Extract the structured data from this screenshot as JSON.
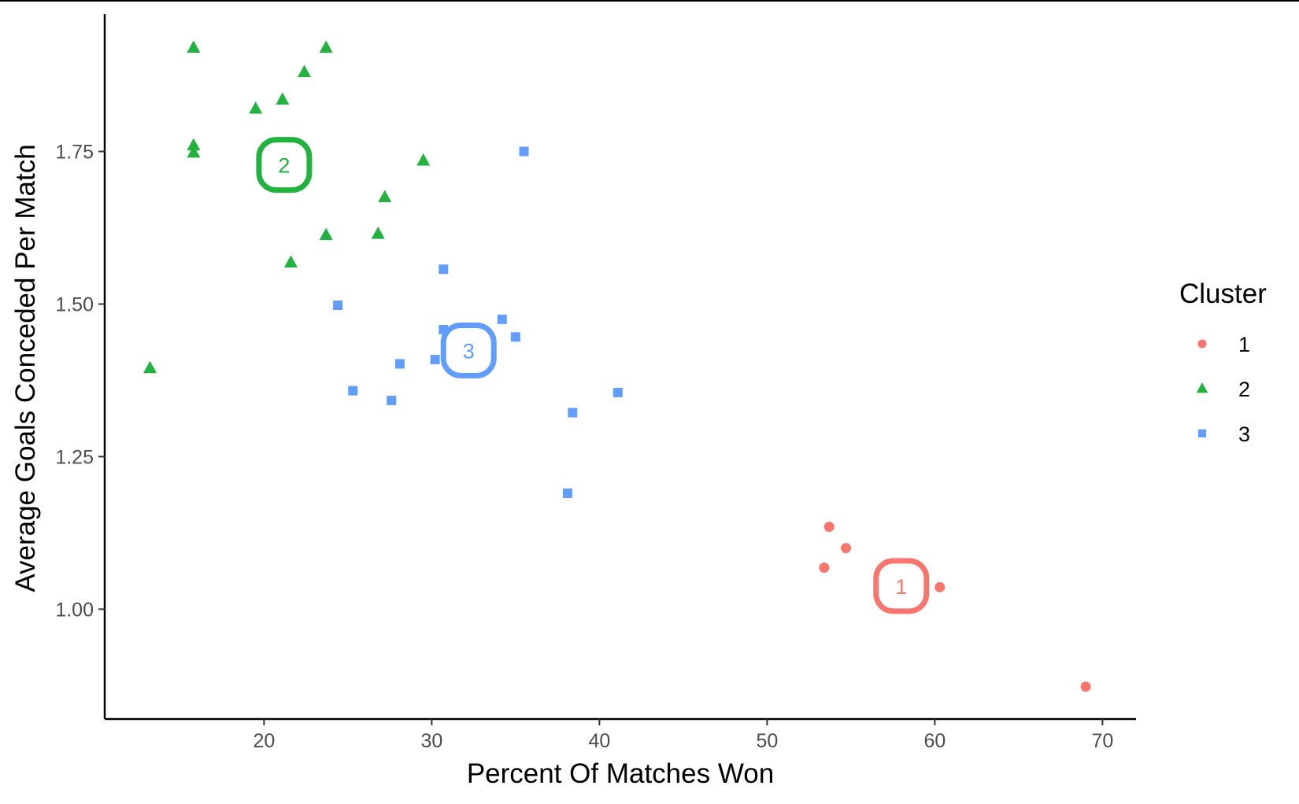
{
  "chart_data": {
    "type": "scatter",
    "title": "",
    "xlabel": "Percent Of Matches Won",
    "ylabel": "Average Goals Conceded Per Match",
    "xlim": [
      10.5,
      72
    ],
    "ylim": [
      0.82,
      1.975
    ],
    "x_ticks": [
      20,
      30,
      40,
      50,
      60,
      70
    ],
    "x_tick_labels": [
      "20",
      "30",
      "40",
      "50",
      "60",
      "70"
    ],
    "y_ticks": [
      1.0,
      1.25,
      1.5,
      1.75
    ],
    "y_tick_labels": [
      "1.00",
      "1.25",
      "1.50",
      "1.75"
    ],
    "grid": false,
    "legend": {
      "title": "Cluster",
      "position": "right"
    },
    "series": [
      {
        "name": "1",
        "color": "#f8766d",
        "shape": "circle",
        "points": [
          {
            "x": 53.7,
            "y": 1.135
          },
          {
            "x": 54.7,
            "y": 1.1
          },
          {
            "x": 53.4,
            "y": 1.068
          },
          {
            "x": 60.3,
            "y": 1.036
          },
          {
            "x": 69.0,
            "y": 0.873
          }
        ],
        "centroid": {
          "x": 58.0,
          "y": 1.038,
          "label": "1"
        }
      },
      {
        "name": "2",
        "color": "#22b33e",
        "shape": "triangle",
        "points": [
          {
            "x": 15.8,
            "y": 1.92
          },
          {
            "x": 23.7,
            "y": 1.92
          },
          {
            "x": 22.4,
            "y": 1.88
          },
          {
            "x": 19.5,
            "y": 1.82
          },
          {
            "x": 21.1,
            "y": 1.835
          },
          {
            "x": 15.8,
            "y": 1.76
          },
          {
            "x": 15.8,
            "y": 1.748
          },
          {
            "x": 29.5,
            "y": 1.735
          },
          {
            "x": 27.2,
            "y": 1.675
          },
          {
            "x": 23.7,
            "y": 1.613
          },
          {
            "x": 26.8,
            "y": 1.615
          },
          {
            "x": 21.6,
            "y": 1.568
          },
          {
            "x": 13.2,
            "y": 1.395
          }
        ],
        "centroid": {
          "x": 21.2,
          "y": 1.728,
          "label": "2"
        }
      },
      {
        "name": "3",
        "color": "#619cff",
        "shape": "square",
        "points": [
          {
            "x": 35.5,
            "y": 1.75
          },
          {
            "x": 30.7,
            "y": 1.557
          },
          {
            "x": 24.4,
            "y": 1.498
          },
          {
            "x": 34.2,
            "y": 1.475
          },
          {
            "x": 30.7,
            "y": 1.458
          },
          {
            "x": 35.0,
            "y": 1.446
          },
          {
            "x": 30.2,
            "y": 1.409
          },
          {
            "x": 28.1,
            "y": 1.402
          },
          {
            "x": 25.3,
            "y": 1.358
          },
          {
            "x": 41.1,
            "y": 1.355
          },
          {
            "x": 27.6,
            "y": 1.342
          },
          {
            "x": 38.4,
            "y": 1.322
          },
          {
            "x": 38.1,
            "y": 1.19
          }
        ],
        "centroid": {
          "x": 32.2,
          "y": 1.424,
          "label": "3"
        }
      }
    ]
  }
}
